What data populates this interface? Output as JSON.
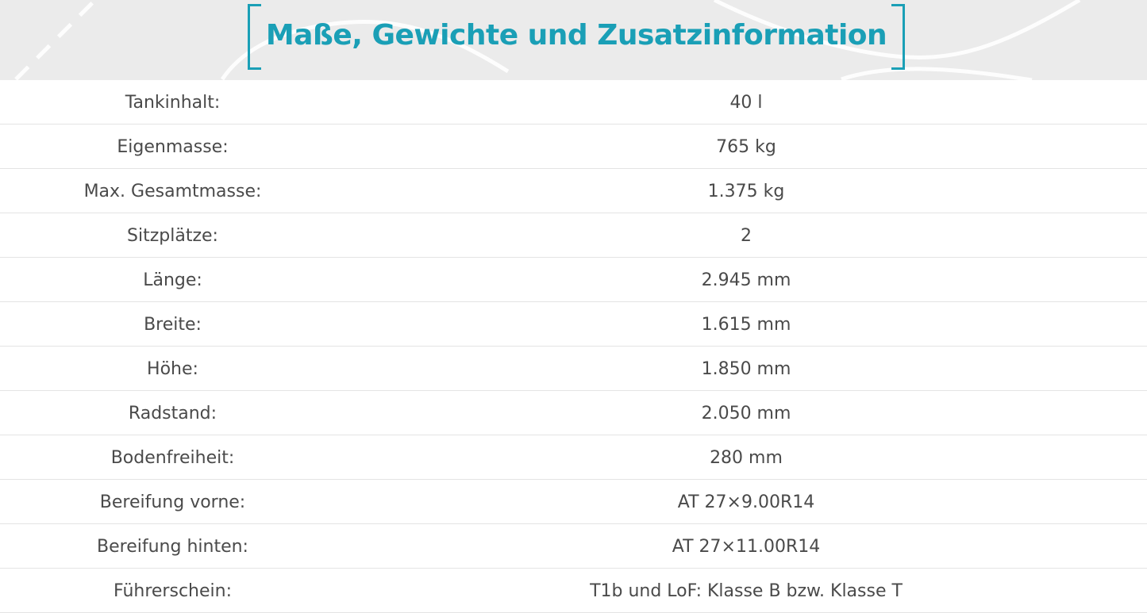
{
  "header": {
    "title": "Maße, Gewichte und Zusatzinformation"
  },
  "colors": {
    "accent": "#1a9fb6",
    "header_bg": "#ebebeb",
    "text": "#4a4a4a",
    "row_border": "#e4e4e4"
  },
  "specs": [
    {
      "label": "Tankinhalt:",
      "value": "40 l"
    },
    {
      "label": "Eigenmasse:",
      "value": "765 kg"
    },
    {
      "label": "Max. Gesamtmasse:",
      "value": "1.375 kg"
    },
    {
      "label": "Sitzplätze:",
      "value": "2"
    },
    {
      "label": "Länge:",
      "value": "2.945 mm"
    },
    {
      "label": "Breite:",
      "value": "1.615 mm"
    },
    {
      "label": "Höhe:",
      "value": "1.850 mm"
    },
    {
      "label": "Radstand:",
      "value": "2.050 mm"
    },
    {
      "label": "Bodenfreiheit:",
      "value": "280 mm"
    },
    {
      "label": "Bereifung vorne:",
      "value": "AT 27×9.00R14"
    },
    {
      "label": "Bereifung hinten:",
      "value": "AT 27×11.00R14"
    },
    {
      "label": "Führerschein:",
      "value": "T1b und LoF: Klasse B bzw. Klasse T"
    }
  ]
}
